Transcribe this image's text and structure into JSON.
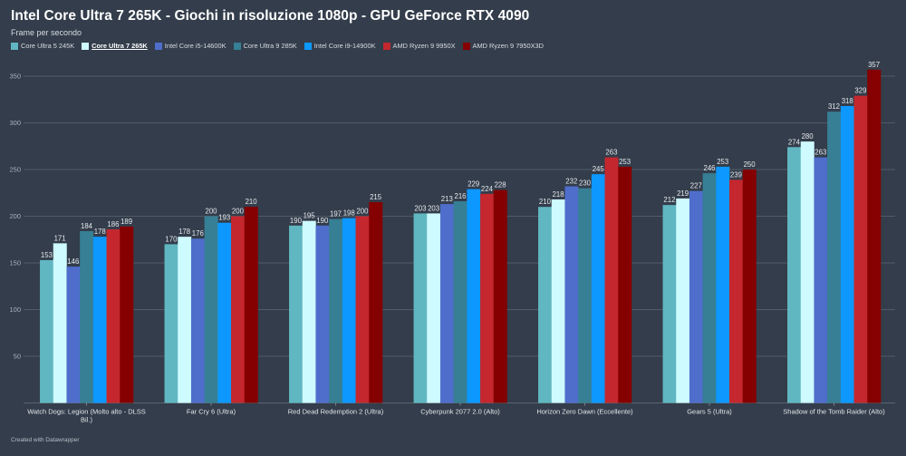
{
  "title": "Intel Core Ultra 7 265K - Giochi in risoluzione 1080p - GPU GeForce RTX 4090",
  "subtitle": "Frame per secondo",
  "footer": "Created with Datawrapper",
  "legend": [
    {
      "name": "Core Ultra 5 245K",
      "color": "#61b7c1",
      "highlighted": false
    },
    {
      "name": "Core Ultra 7 265K",
      "color": "#cdfbff",
      "highlighted": true
    },
    {
      "name": "Intel Core i5-14600K",
      "color": "#4f6ecb",
      "highlighted": false
    },
    {
      "name": "Core Ultra 9 285K",
      "color": "#367f94",
      "highlighted": false
    },
    {
      "name": "Intel Core i9-14900K",
      "color": "#0d98ff",
      "highlighted": false
    },
    {
      "name": "AMD Ryzen 9 9950X",
      "color": "#c4272e",
      "highlighted": false
    },
    {
      "name": "AMD Ryzen 9 7950X3D",
      "color": "#850000",
      "highlighted": false
    }
  ],
  "chart_data": {
    "type": "bar",
    "title": "Intel Core Ultra 7 265K - Giochi in risoluzione 1080p - GPU GeForce RTX 4090",
    "subtitle": "Frame per secondo",
    "xlabel": "",
    "ylabel": "Frame per secondo",
    "ylim": [
      0,
      370
    ],
    "yticks": [
      50,
      100,
      150,
      200,
      250,
      300,
      350
    ],
    "grid": true,
    "legend_position": "top-left",
    "categories": [
      [
        "Watch Dogs: Legion (Molto alto - DLSS",
        "Bil.)"
      ],
      [
        "Far Cry 6 (Ultra)"
      ],
      [
        "Red Dead Redemption 2 (Ultra)"
      ],
      [
        "Cyberpunk 2077 2.0 (Alto)"
      ],
      [
        "Horizon Zero Dawn (Eccellente)"
      ],
      [
        "Gears 5 (Ultra)"
      ],
      [
        "Shadow of the Tomb Raider (Alto)"
      ]
    ],
    "series": [
      {
        "name": "Core Ultra 5 245K",
        "color": "#61b7c1",
        "values": [
          153,
          170,
          190,
          203,
          210,
          212,
          274
        ]
      },
      {
        "name": "Core Ultra 7 265K",
        "color": "#cdfbff",
        "values": [
          171,
          178,
          195,
          203,
          218,
          219,
          280
        ]
      },
      {
        "name": "Intel Core i5-14600K",
        "color": "#4f6ecb",
        "values": [
          146,
          176,
          190,
          213,
          232,
          227,
          263
        ]
      },
      {
        "name": "Core Ultra 9 285K",
        "color": "#367f94",
        "values": [
          184,
          200,
          197,
          216,
          230,
          246,
          312
        ]
      },
      {
        "name": "Intel Core i9-14900K",
        "color": "#0d98ff",
        "values": [
          178,
          193,
          198,
          229,
          245,
          253,
          318
        ]
      },
      {
        "name": "AMD Ryzen 9 9950X",
        "color": "#c4272e",
        "values": [
          186,
          200,
          200,
          224,
          263,
          239,
          329
        ]
      },
      {
        "name": "AMD Ryzen 9 7950X3D",
        "color": "#850000",
        "values": [
          189,
          210,
          215,
          228,
          253,
          250,
          357
        ]
      }
    ]
  }
}
